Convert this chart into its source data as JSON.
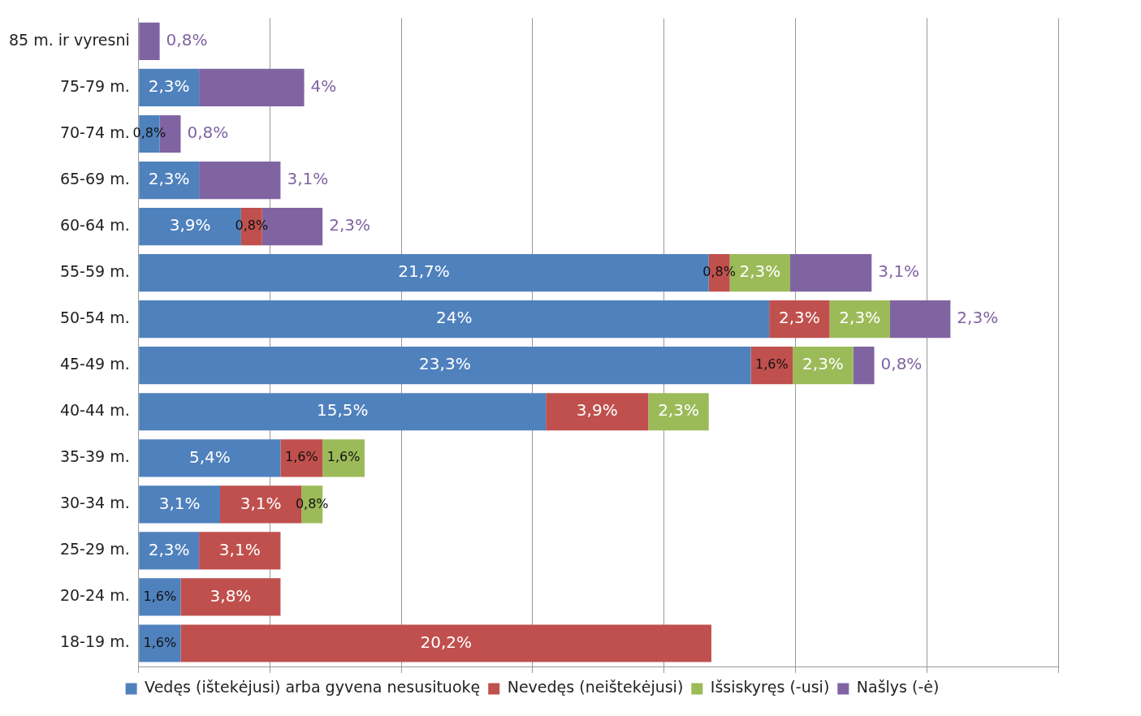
{
  "chart_data": {
    "type": "bar",
    "orientation": "horizontal",
    "stacked": true,
    "data_labels": true,
    "legend": "bottom",
    "grid": "x",
    "tick_labels": "y",
    "categories": [
      "85 m. ir vyresni",
      "75-79 m.",
      "70-74 m.",
      "65-69 m.",
      "60-64 m.",
      "55-59 m.",
      "50-54 m.",
      "45-49 m.",
      "40-44 m.",
      "35-39 m.",
      "30-34 m.",
      "25-29 m.",
      "20-24 m.",
      "18-19 m."
    ],
    "xlim": [
      0,
      35
    ],
    "xticks": [
      {
        "value": 0,
        "label": null
      },
      {
        "value": 5,
        "label": null
      },
      {
        "value": 10,
        "label": null
      },
      {
        "value": 15,
        "label": null
      },
      {
        "value": 20,
        "label": null
      },
      {
        "value": 25,
        "label": null
      },
      {
        "value": 30,
        "label": null
      },
      {
        "value": 35,
        "label": null
      }
    ],
    "series": [
      {
        "name": "Vedęs (ištekėjusi) arba gyvena nesusituokę",
        "color": "#4f81bd",
        "values": [
          null,
          2.3,
          0.8,
          2.3,
          3.9,
          21.7,
          24,
          23.3,
          15.5,
          5.4,
          3.1,
          2.3,
          1.6,
          1.6
        ],
        "value_labels": [
          null,
          "2,3%",
          "0,8%",
          "2,3%",
          "3,9%",
          "21,7%",
          "24%",
          "23,3%",
          "15,5%",
          "5,4%",
          "3,1%",
          "2,3%",
          "1,6%",
          "1,6%"
        ]
      },
      {
        "name": "Nevedęs (neištekėjusi)",
        "color": "#c0504d",
        "values": [
          null,
          null,
          null,
          null,
          0.8,
          0.8,
          2.3,
          1.6,
          3.9,
          1.6,
          3.1,
          3.1,
          3.8,
          20.2
        ],
        "value_labels": [
          null,
          null,
          null,
          null,
          "0,8%",
          "0,8%",
          "2,3%",
          "1,6%",
          "3,9%",
          "1,6%",
          "3,1%",
          "3,1%",
          "3,8%",
          "20,2%"
        ]
      },
      {
        "name": "Išsiskyręs (-usi)",
        "color": "#9bbb59",
        "values": [
          null,
          null,
          null,
          null,
          null,
          2.3,
          2.3,
          2.3,
          2.3,
          1.6,
          0.8,
          null,
          null,
          null
        ],
        "value_labels": [
          null,
          null,
          null,
          null,
          null,
          "2,3%",
          "2,3%",
          "2,3%",
          "2,3%",
          "1,6%",
          "0,8%",
          null,
          null,
          null
        ]
      },
      {
        "name": "Našlys (-ė)",
        "color": "#8064a2",
        "values": [
          0.8,
          4,
          0.8,
          3.1,
          2.3,
          3.1,
          2.3,
          0.8,
          null,
          null,
          null,
          null,
          null,
          null
        ],
        "value_labels": [
          "0,8%",
          "4%",
          "0,8%",
          "3,1%",
          "2,3%",
          "3,1%",
          "2,3%",
          "0,8%",
          null,
          null,
          null,
          null,
          null,
          null
        ]
      }
    ]
  }
}
